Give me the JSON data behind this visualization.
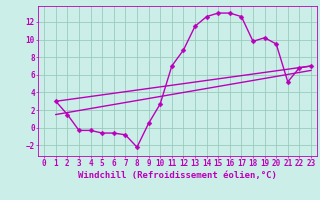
{
  "background_color": "#cceee8",
  "grid_color": "#99ccbb",
  "line_color": "#bb00bb",
  "marker": "D",
  "markersize": 2.5,
  "linewidth": 1.0,
  "xlabel": "Windchill (Refroidissement éolien,°C)",
  "xlabel_fontsize": 6.5,
  "tick_fontsize": 5.5,
  "xlim": [
    -0.5,
    23.5
  ],
  "ylim": [
    -3.2,
    13.8
  ],
  "yticks": [
    -2,
    0,
    2,
    4,
    6,
    8,
    10,
    12
  ],
  "xticks": [
    0,
    1,
    2,
    3,
    4,
    5,
    6,
    7,
    8,
    9,
    10,
    11,
    12,
    13,
    14,
    15,
    16,
    17,
    18,
    19,
    20,
    21,
    22,
    23
  ],
  "line1_x": [
    1,
    2,
    3,
    4,
    5,
    6,
    7,
    8,
    9,
    10,
    11,
    12,
    13,
    14,
    15,
    16,
    17,
    18,
    19,
    20,
    21,
    22,
    23
  ],
  "line1_y": [
    3.0,
    1.5,
    -0.3,
    -0.3,
    -0.6,
    -0.6,
    -0.8,
    -2.2,
    0.5,
    2.7,
    7.0,
    8.8,
    11.5,
    12.6,
    13.0,
    13.0,
    12.6,
    9.8,
    10.2,
    9.5,
    5.2,
    6.8,
    7.0
  ],
  "line2_x": [
    1,
    23
  ],
  "line2_y": [
    3.0,
    7.0
  ],
  "line3_x": [
    1,
    23
  ],
  "line3_y": [
    1.5,
    6.5
  ]
}
